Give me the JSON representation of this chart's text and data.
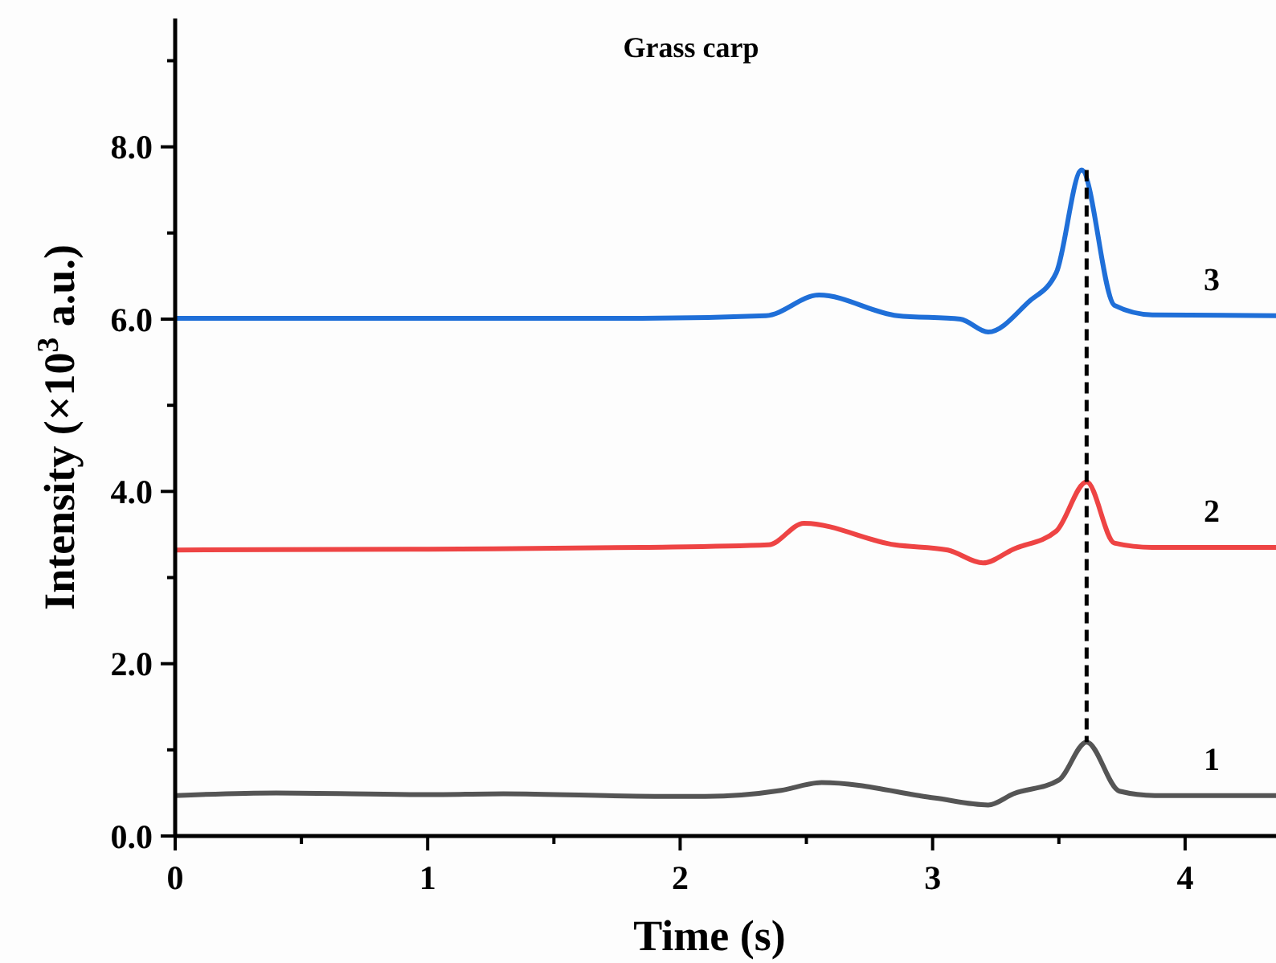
{
  "chart_data": {
    "type": "line",
    "title": "Grass carp",
    "xlabel": "Time (s)",
    "ylabel": "Intensity (×10$^{3}$ a.u.)",
    "xlim": [
      0,
      4.36
    ],
    "ylim": [
      0,
      9.49
    ],
    "xticks": [
      0,
      {
        "value": 0.5,
        "label": null
      },
      1,
      {
        "value": 1.5,
        "label": null
      },
      2,
      {
        "value": 2.5,
        "label": null
      },
      3,
      {
        "value": 3.5,
        "label": null
      },
      4
    ],
    "yticks": [
      {
        "value": 0,
        "label": "0.0"
      },
      {
        "value": 1,
        "label": null
      },
      {
        "value": 2,
        "label": "2.0"
      },
      {
        "value": 3,
        "label": null
      },
      {
        "value": 4,
        "label": "4.0"
      },
      {
        "value": 5,
        "label": null
      },
      {
        "value": 6,
        "label": "6.0"
      },
      {
        "value": 7,
        "label": null
      },
      {
        "value": 8,
        "label": "8.0"
      },
      {
        "value": 9,
        "label": null
      }
    ],
    "grid": false,
    "marker": "none",
    "line_style": "solid",
    "ref_lines": [
      {
        "axis": "x",
        "value": 3.61,
        "line_style": "dashed",
        "color": "#000000"
      }
    ],
    "series": [
      {
        "name": "1",
        "color": "#555555",
        "x": [
          0,
          0.4,
          1.0,
          1.3,
          1.9,
          2.1,
          2.4,
          2.56,
          3.01,
          3.22,
          3.32,
          3.5,
          3.61,
          3.74,
          3.88,
          4.36
        ],
        "values": [
          0.47,
          0.5,
          0.48,
          0.49,
          0.46,
          0.46,
          0.53,
          0.62,
          0.44,
          0.36,
          0.49,
          0.65,
          1.09,
          0.52,
          0.47,
          0.47
        ]
      },
      {
        "name": "2",
        "color": "#ee4444",
        "x": [
          0,
          1.0,
          1.85,
          2.35,
          2.49,
          2.85,
          3.06,
          3.2,
          3.32,
          3.49,
          3.61,
          3.72,
          3.87,
          4.36
        ],
        "values": [
          3.32,
          3.33,
          3.35,
          3.38,
          3.63,
          3.38,
          3.32,
          3.17,
          3.33,
          3.54,
          4.11,
          3.4,
          3.35,
          3.35
        ]
      },
      {
        "name": "3",
        "color": "#1f6fd8",
        "x": [
          0,
          1.0,
          1.85,
          2.34,
          2.55,
          2.86,
          3.11,
          3.22,
          3.38,
          3.49,
          3.59,
          3.72,
          3.87,
          4.36
        ],
        "values": [
          6.01,
          6.01,
          6.01,
          6.04,
          6.28,
          6.04,
          6.0,
          5.85,
          6.2,
          6.54,
          7.73,
          6.16,
          6.05,
          6.04
        ]
      }
    ]
  }
}
